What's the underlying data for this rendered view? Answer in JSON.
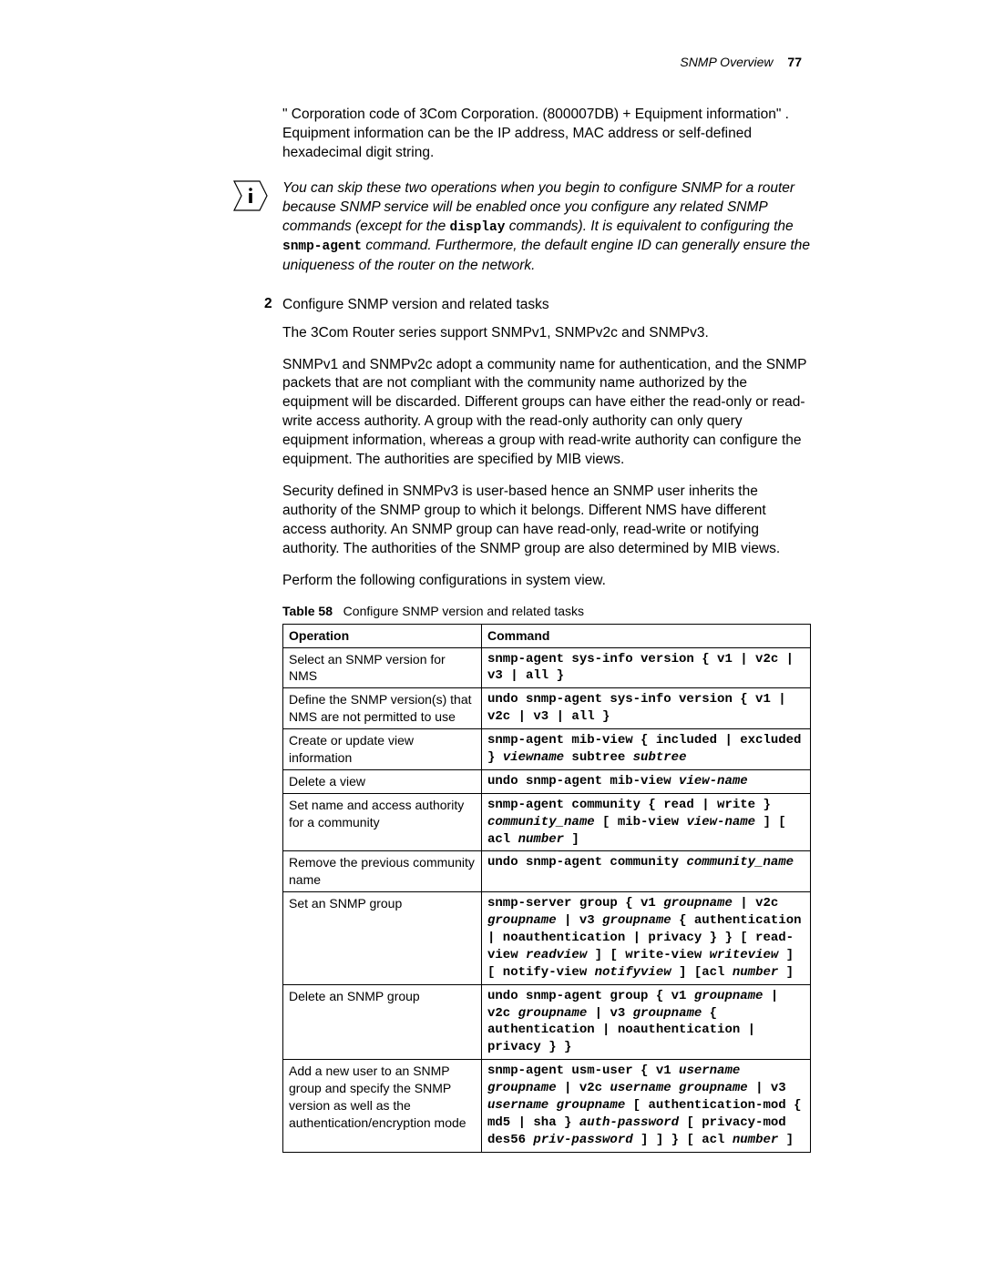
{
  "header": {
    "section": "SNMP Overview",
    "page_number": "77"
  },
  "intro_para": "\" Corporation code of 3Com Corporation. (800007DB) + Equipment information\" . Equipment information can be the IP address, MAC address or self-defined hexadecimal digit string.",
  "note": {
    "pre": "You can skip these two operations when you begin to configure SNMP for a router because SNMP service will be enabled once you configure any related SNMP commands (except for the ",
    "mono1": "display",
    "mid": " commands). It is equivalent to configuring the ",
    "mono2": "snmp-agent",
    "post": " command. Furthermore, the default engine ID can generally ensure the uniqueness of the router on the network."
  },
  "step2": {
    "num": "2",
    "title": "Configure SNMP version and related tasks",
    "p1": "The 3Com Router series support SNMPv1, SNMPv2c and SNMPv3.",
    "p2": "SNMPv1 and SNMPv2c adopt a community name for authentication, and the SNMP packets that are not compliant with the community name authorized by the equipment will be discarded. Different groups can have either the read-only or read-write access authority. A group with the read-only authority can only query equipment information, whereas a group with read-write authority can configure the equipment. The authorities are specified by MIB views.",
    "p3": "Security defined in SNMPv3 is user-based hence an SNMP user inherits the authority of the SNMP group to which it belongs. Different NMS have different access authority. An SNMP group can have read-only, read-write or notifying authority. The authorities of the SNMP group are also determined by MIB views.",
    "p4": "Perform the following configurations in system view."
  },
  "table": {
    "label": "Table 58",
    "caption": "Configure SNMP version and related tasks",
    "headers": {
      "op": "Operation",
      "cmd": "Command"
    },
    "rows": [
      {
        "op": "Select an SNMP version for NMS",
        "cmd": [
          [
            "kw",
            "snmp-agent sys-info version { v1 | v2c | v3 | all }"
          ]
        ]
      },
      {
        "op": "Define the SNMP version(s) that NMS are not permitted to use",
        "cmd": [
          [
            "kw",
            "undo snmp-agent sys-info version { v1 | v2c | v3 | all }"
          ]
        ]
      },
      {
        "op": "Create or update view information",
        "cmd": [
          [
            "kw",
            "snmp-agent mib-view { included | excluded } "
          ],
          [
            "arg",
            "viewname"
          ],
          [
            "kw",
            " subtree "
          ],
          [
            "arg",
            "subtree"
          ]
        ]
      },
      {
        "op": "Delete a view",
        "cmd": [
          [
            "kw",
            "undo snmp-agent mib-view "
          ],
          [
            "arg",
            "view-name"
          ]
        ]
      },
      {
        "op": "Set name and access authority for a community",
        "cmd": [
          [
            "kw",
            "snmp-agent community { read | write } "
          ],
          [
            "arg",
            "community_name"
          ],
          [
            "kw",
            " [ mib-view "
          ],
          [
            "arg",
            "view-name"
          ],
          [
            "kw",
            " ] [ acl "
          ],
          [
            "arg",
            "number"
          ],
          [
            "kw",
            " ]"
          ]
        ]
      },
      {
        "op": "Remove the previous community name",
        "cmd": [
          [
            "kw",
            "undo snmp-agent community "
          ],
          [
            "arg",
            "community_name"
          ]
        ]
      },
      {
        "op": "Set an SNMP group",
        "cmd": [
          [
            "kw",
            "snmp-server group { v1 "
          ],
          [
            "arg",
            "groupname"
          ],
          [
            "kw",
            " | v2c "
          ],
          [
            "arg",
            "groupname"
          ],
          [
            "kw",
            " | v3 "
          ],
          [
            "arg",
            "groupname"
          ],
          [
            "kw",
            " { authentication | noauthentication | privacy } } [ read-view "
          ],
          [
            "arg",
            "readview"
          ],
          [
            "kw",
            " ] [ write-view "
          ],
          [
            "arg",
            "writeview"
          ],
          [
            "kw",
            " ] [ notify-view "
          ],
          [
            "arg",
            "notifyview"
          ],
          [
            "kw",
            " ] [acl "
          ],
          [
            "arg",
            "number"
          ],
          [
            "kw",
            " ]"
          ]
        ]
      },
      {
        "op": "Delete an SNMP group",
        "cmd": [
          [
            "kw",
            "undo snmp-agent group { v1 "
          ],
          [
            "arg",
            "groupname"
          ],
          [
            "kw",
            " | v2c "
          ],
          [
            "arg",
            "groupname"
          ],
          [
            "kw",
            " | v3 "
          ],
          [
            "arg",
            "groupname"
          ],
          [
            "kw",
            " { authentication | noauthentication | privacy } }"
          ]
        ]
      },
      {
        "op": "Add a new user to an SNMP group and specify the SNMP version as well as the authentication/encryption mode",
        "cmd": [
          [
            "kw",
            "snmp-agent usm-user  { v1 "
          ],
          [
            "arg",
            "username groupname"
          ],
          [
            "kw",
            " | v2c "
          ],
          [
            "arg",
            "username groupname"
          ],
          [
            "kw",
            " | v3 "
          ],
          [
            "arg",
            "username groupname"
          ],
          [
            "kw",
            " [ authentication-mod { md5 | sha } "
          ],
          [
            "arg",
            "auth-password"
          ],
          [
            "kw",
            " [ privacy-mod des56 "
          ],
          [
            "arg",
            "priv-password"
          ],
          [
            "kw",
            " ] ] } [ acl "
          ],
          [
            "arg",
            "number"
          ],
          [
            "kw",
            " ]"
          ]
        ]
      }
    ]
  }
}
